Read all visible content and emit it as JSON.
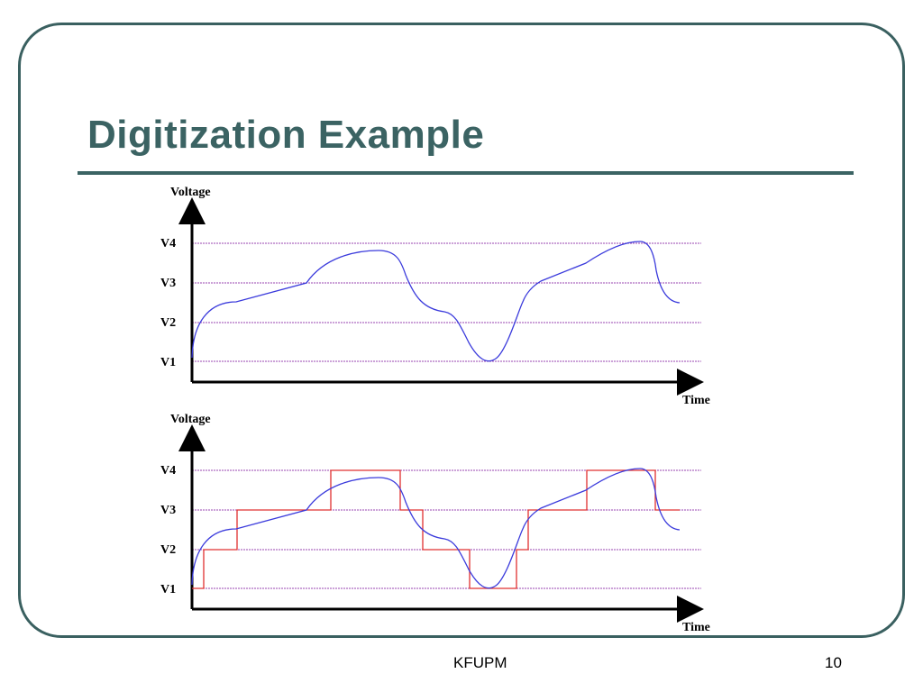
{
  "slide": {
    "title": "Digitization Example",
    "footer": "KFUPM",
    "page_number": "10"
  },
  "colors": {
    "frame": "#3a6060",
    "title": "#3b6363",
    "signal": "#3b3bdc",
    "quantized": "#e03030",
    "level_lines": "#9a44b0"
  },
  "diagrams": [
    {
      "y_axis_label": "Voltage",
      "x_axis_label": "Time",
      "levels": [
        "V4",
        "V3",
        "V2",
        "V1"
      ],
      "show_quantized": false
    },
    {
      "y_axis_label": "Voltage",
      "x_axis_label": "Time",
      "levels": [
        "V4",
        "V3",
        "V2",
        "V1"
      ],
      "show_quantized": true
    }
  ]
}
